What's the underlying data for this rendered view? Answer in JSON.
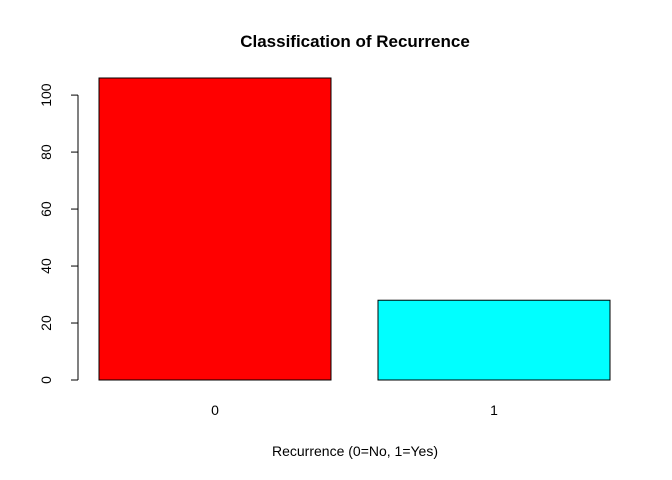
{
  "chart_data": {
    "type": "bar",
    "title": "Classification of Recurrence",
    "xlabel": "Recurrence (0=No, 1=Yes)",
    "ylabel": "",
    "categories": [
      "0",
      "1"
    ],
    "values": [
      106,
      28
    ],
    "colors": [
      "#ff0000",
      "#00ffff"
    ],
    "ylim": [
      0,
      106
    ],
    "yticks": [
      0,
      20,
      40,
      60,
      80,
      100
    ],
    "grid": false
  }
}
